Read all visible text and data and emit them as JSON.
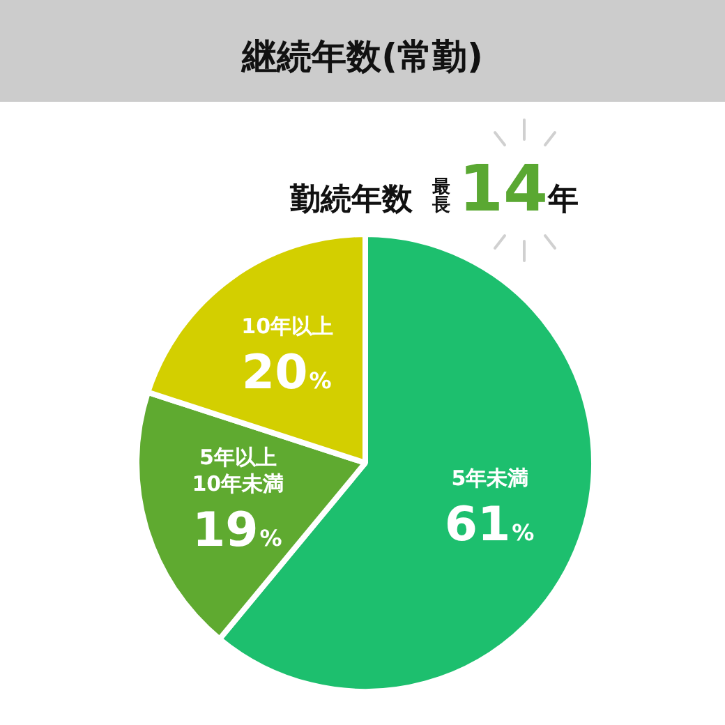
{
  "chart_data": {
    "type": "pie",
    "title": "継続年数(常勤)",
    "subtitle": "勤続年数",
    "annotations": [
      "最長14年"
    ],
    "categories": [
      "5年未満",
      "5年以上\n10年未満",
      "10年以上"
    ],
    "values": [
      61,
      19,
      20
    ],
    "colors": [
      "#1dbf6e",
      "#5faa30",
      "#d3cf00"
    ],
    "value_labels": [
      "61%",
      "19%",
      "20%"
    ]
  }
}
